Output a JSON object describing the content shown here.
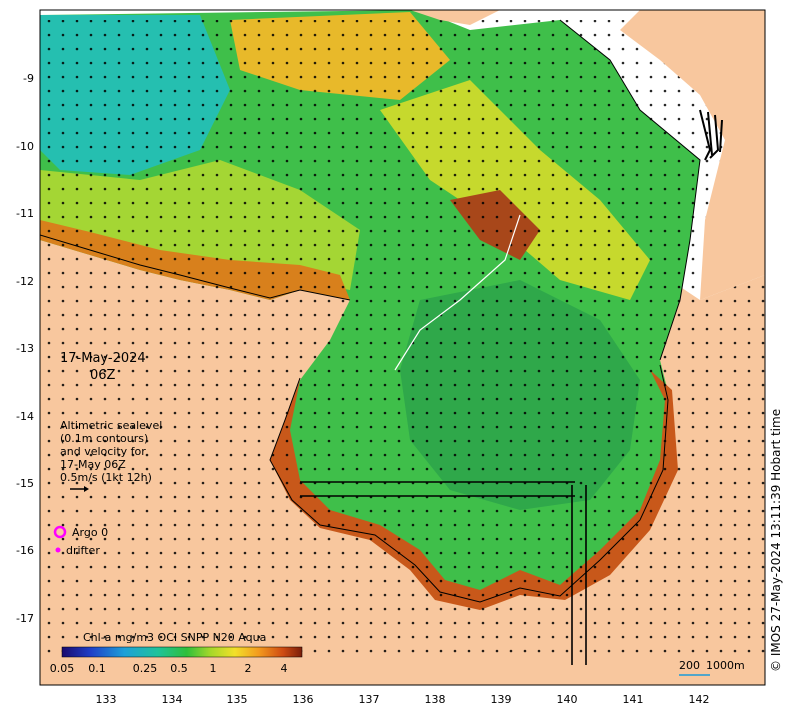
{
  "map": {
    "date": "17-May-2024",
    "time": "06Z",
    "legend_lines": [
      "Altimetric sealevel",
      "(0.1m contours)",
      "and velocity for",
      "17-May 06Z",
      "0.5m/s (1kt 12h)"
    ],
    "argo_label": "Argo 0",
    "drifter_label": "drifter",
    "colorbar_title": "Chl-a mg/m3 OCI SNPP N20 Aqua",
    "colorbar_ticks": [
      "0.05",
      "0.1",
      "0.25",
      "0.5",
      "1",
      "2",
      "4"
    ],
    "scale_label": "200",
    "depth_label": "1000m",
    "credit": "© IMOS 27-May-2024 13:11:39 Hobart time",
    "lat_ticks": [
      "-9",
      "-10",
      "-11",
      "-12",
      "-13",
      "-14",
      "-15",
      "-16",
      "-17"
    ],
    "lon_ticks": [
      "133",
      "134",
      "135",
      "136",
      "137",
      "138",
      "139",
      "140",
      "141",
      "142"
    ],
    "colors": {
      "land": "#f8c79e",
      "argo": "#ff00ff",
      "drifter": "#ff00ff"
    }
  }
}
